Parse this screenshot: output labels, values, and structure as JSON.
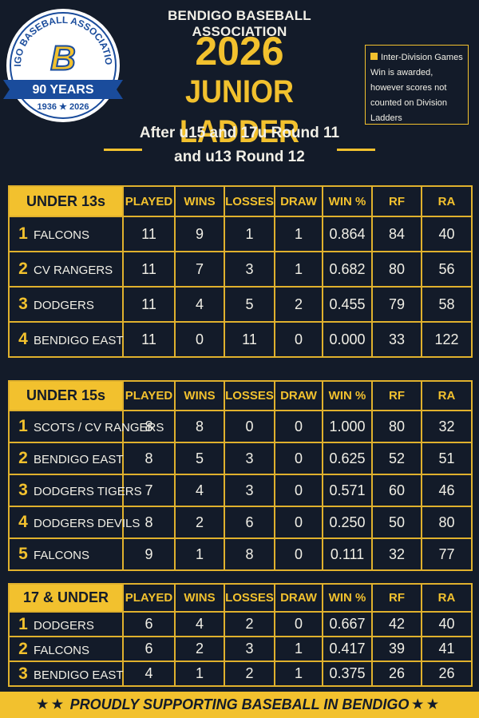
{
  "logo": {
    "ring": "BENDIGO BASEBALL ASSOCIATION INC.",
    "monogram": "B",
    "banner": "90 YEARS",
    "years": "1936 ★ 2026"
  },
  "header": {
    "org": "BENDIGO BASEBALL ASSOCIATION",
    "year": "2026",
    "title": "JUNIOR LADDER",
    "subtitle": [
      "After u15 and 17u Round 11",
      "and u13 Round 12"
    ]
  },
  "note": {
    "label": "Inter-Division Games",
    "text": "Win is awarded, however scores not counted on Division Ladders"
  },
  "tables": [
    {
      "title": "UNDER 13s",
      "columns": [
        "PLAYED",
        "WINS",
        "LOSSES",
        "DRAW",
        "WIN %",
        "RF",
        "RA"
      ],
      "rows": [
        [
          "1",
          "FALCONS",
          "11",
          "9",
          "1",
          "1",
          "0.864",
          "84",
          "40"
        ],
        [
          "2",
          "CV RANGERS",
          "11",
          "7",
          "3",
          "1",
          "0.682",
          "80",
          "56"
        ],
        [
          "3",
          "DODGERS",
          "11",
          "4",
          "5",
          "2",
          "0.455",
          "79",
          "58"
        ],
        [
          "4",
          "BENDIGO EAST",
          "11",
          "0",
          "11",
          "0",
          "0.000",
          "33",
          "122"
        ]
      ]
    },
    {
      "title": "UNDER 15s",
      "columns": [
        "PLAYED",
        "WINS",
        "LOSSES",
        "DRAW",
        "WIN %",
        "RF",
        "RA"
      ],
      "rows": [
        [
          "1",
          "SCOTS / CV RANGERS",
          "8",
          "8",
          "0",
          "0",
          "1.000",
          "80",
          "32"
        ],
        [
          "2",
          "BENDIGO EAST",
          "8",
          "5",
          "3",
          "0",
          "0.625",
          "52",
          "51"
        ],
        [
          "3",
          "DODGERS TIGERS",
          "7",
          "4",
          "3",
          "0",
          "0.571",
          "60",
          "46"
        ],
        [
          "4",
          "DODGERS DEVILS",
          "8",
          "2",
          "6",
          "0",
          "0.250",
          "50",
          "80"
        ],
        [
          "5",
          "FALCONS",
          "9",
          "1",
          "8",
          "0",
          "0.111",
          "32",
          "77"
        ]
      ]
    },
    {
      "title": "17 & UNDER",
      "columns": [
        "PLAYED",
        "WINS",
        "LOSSES",
        "DRAW",
        "WIN %",
        "RF",
        "RA"
      ],
      "rows": [
        [
          "1",
          "DODGERS",
          "6",
          "4",
          "2",
          "0",
          "0.667",
          "42",
          "40"
        ],
        [
          "2",
          "FALCONS",
          "6",
          "2",
          "3",
          "1",
          "0.417",
          "39",
          "41"
        ],
        [
          "3",
          "BENDIGO EAST",
          "4",
          "1",
          "2",
          "1",
          "0.375",
          "26",
          "26"
        ]
      ]
    }
  ],
  "footer": "PROUDLY SUPPORTING BASEBALL IN BENDIGO"
}
